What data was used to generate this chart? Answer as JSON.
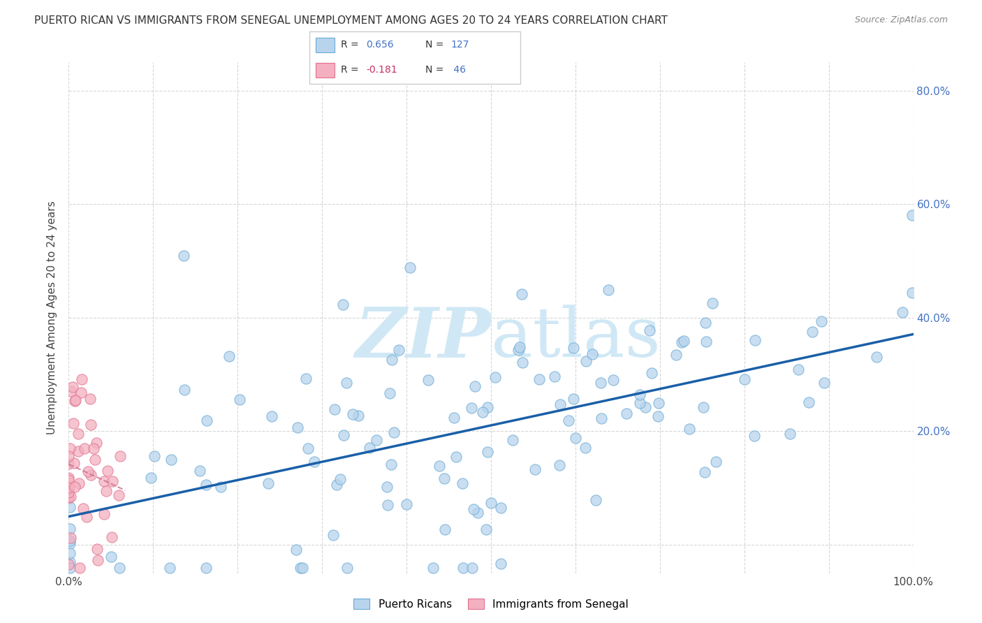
{
  "title": "PUERTO RICAN VS IMMIGRANTS FROM SENEGAL UNEMPLOYMENT AMONG AGES 20 TO 24 YEARS CORRELATION CHART",
  "source": "Source: ZipAtlas.com",
  "ylabel": "Unemployment Among Ages 20 to 24 years",
  "xlim": [
    0,
    1.0
  ],
  "ylim": [
    -0.05,
    0.85
  ],
  "x_ticks": [
    0.0,
    0.1,
    0.2,
    0.3,
    0.4,
    0.5,
    0.6,
    0.7,
    0.8,
    0.9,
    1.0
  ],
  "x_tick_labels": [
    "0.0%",
    "",
    "",
    "",
    "",
    "",
    "",
    "",
    "",
    "",
    "100.0%"
  ],
  "y_ticks": [
    0.0,
    0.2,
    0.4,
    0.6,
    0.8
  ],
  "y_tick_labels": [
    "",
    "20.0%",
    "40.0%",
    "60.0%",
    "80.0%"
  ],
  "blue_fill": "#b8d4ed",
  "blue_edge": "#6aaad4",
  "blue_line_color": "#1a5fa8",
  "pink_fill": "#f4b0c0",
  "pink_edge": "#e07090",
  "pink_line_color": "#c87090",
  "watermark_color": "#d0e8f5",
  "legend_label1": "Puerto Ricans",
  "legend_label2": "Immigrants from Senegal",
  "blue_N": 127,
  "pink_N": 46,
  "blue_seed": 42,
  "pink_seed": 7
}
